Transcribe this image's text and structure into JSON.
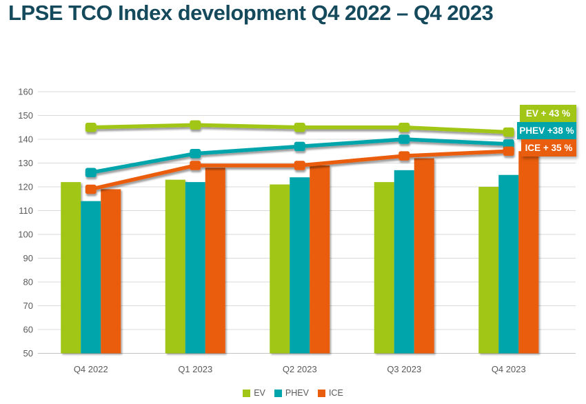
{
  "title": "LPSE TCO Index development Q4 2022 – Q4 2023",
  "chart_data": {
    "type": "bar+line",
    "title": "LPSE TCO Index development Q4 2022 – Q4 2023",
    "categories": [
      "Q4 2022",
      "Q1 2023",
      "Q2 2023",
      "Q3 2023",
      "Q4 2023"
    ],
    "bar_series": [
      {
        "name": "EV",
        "color": "#a2c617",
        "values": [
          122,
          123,
          121,
          122,
          120
        ]
      },
      {
        "name": "PHEV",
        "color": "#00a5ab",
        "values": [
          114,
          122,
          124,
          127,
          125
        ]
      },
      {
        "name": "ICE",
        "color": "#e95d0f",
        "values": [
          119,
          128,
          129,
          132,
          135
        ]
      }
    ],
    "line_series": [
      {
        "name": "EV",
        "color": "#a2c617",
        "values": [
          145,
          146,
          145,
          145,
          143
        ]
      },
      {
        "name": "PHEV",
        "color": "#00a5ab",
        "values": [
          126,
          134,
          137,
          140,
          138
        ]
      },
      {
        "name": "ICE",
        "color": "#e95d0f",
        "values": [
          119,
          129,
          129,
          133,
          135
        ]
      }
    ],
    "callouts": [
      {
        "label": "EV + 43 %",
        "color": "#a2c617"
      },
      {
        "label": "PHEV +38 %",
        "color": "#00a5ab"
      },
      {
        "label": "ICE + 35 %",
        "color": "#e95d0f"
      }
    ],
    "legend": [
      "EV",
      "PHEV",
      "ICE"
    ],
    "legend_position": "bottom",
    "xlabel": "",
    "ylabel": "",
    "ylim": [
      50,
      160
    ],
    "ytick_step": 10,
    "grid": true
  },
  "colors": {
    "title": "#15495c",
    "axis_text": "#595959",
    "gridline": "#d9d9d9",
    "axis_line": "#c3c3c3",
    "background": "#ffffff"
  }
}
